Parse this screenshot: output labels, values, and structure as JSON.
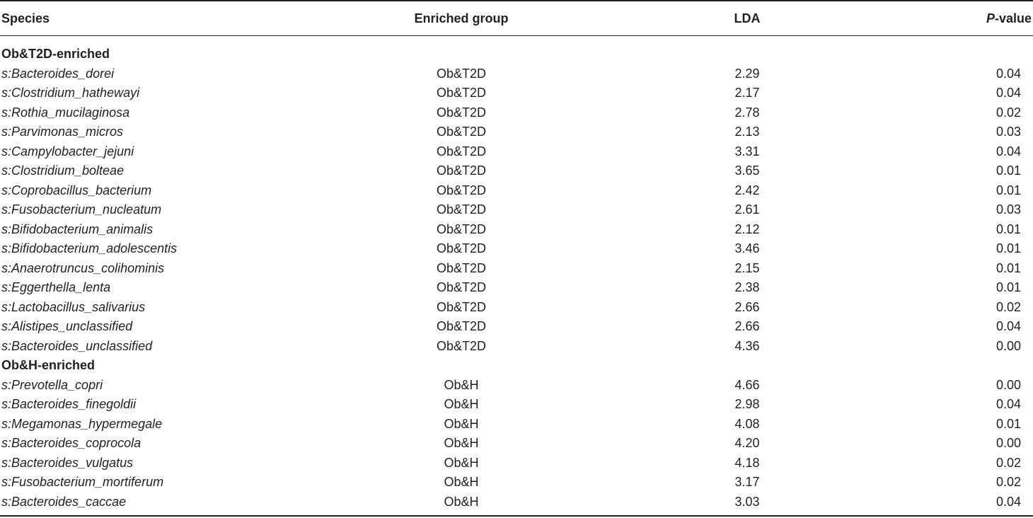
{
  "header": {
    "species": "Species",
    "enriched_group": "Enriched group",
    "lda": "LDA",
    "p_value_italic": "P",
    "p_value_rest": "-value"
  },
  "sections": [
    {
      "title": "Ob&T2D-enriched",
      "rows": [
        {
          "species": "s:Bacteroides_dorei",
          "group": "Ob&T2D",
          "lda": "2.29",
          "p": "0.04"
        },
        {
          "species": "s:Clostridium_hathewayi",
          "group": "Ob&T2D",
          "lda": "2.17",
          "p": "0.04"
        },
        {
          "species": "s:Rothia_mucilaginosa",
          "group": "Ob&T2D",
          "lda": "2.78",
          "p": "0.02"
        },
        {
          "species": "s:Parvimonas_micros",
          "group": "Ob&T2D",
          "lda": "2.13",
          "p": "0.03"
        },
        {
          "species": "s:Campylobacter_jejuni",
          "group": "Ob&T2D",
          "lda": "3.31",
          "p": "0.04"
        },
        {
          "species": "s:Clostridium_bolteae",
          "group": "Ob&T2D",
          "lda": "3.65",
          "p": "0.01"
        },
        {
          "species": "s:Coprobacillus_bacterium",
          "group": "Ob&T2D",
          "lda": "2.42",
          "p": "0.01"
        },
        {
          "species": "s:Fusobacterium_nucleatum",
          "group": "Ob&T2D",
          "lda": "2.61",
          "p": "0.03"
        },
        {
          "species": "s:Bifidobacterium_animalis",
          "group": "Ob&T2D",
          "lda": "2.12",
          "p": "0.01"
        },
        {
          "species": "s:Bifidobacterium_adolescentis",
          "group": "Ob&T2D",
          "lda": "3.46",
          "p": "0.01"
        },
        {
          "species": "s:Anaerotruncus_colihominis",
          "group": "Ob&T2D",
          "lda": "2.15",
          "p": "0.01"
        },
        {
          "species": "s:Eggerthella_lenta",
          "group": "Ob&T2D",
          "lda": "2.38",
          "p": "0.01"
        },
        {
          "species": "s:Lactobacillus_salivarius",
          "group": "Ob&T2D",
          "lda": "2.66",
          "p": "0.02"
        },
        {
          "species": "s:Alistipes_unclassified",
          "group": "Ob&T2D",
          "lda": "2.66",
          "p": "0.04"
        },
        {
          "species": "s:Bacteroides_unclassified",
          "group": "Ob&T2D",
          "lda": "4.36",
          "p": "0.00"
        }
      ]
    },
    {
      "title": "Ob&H-enriched",
      "rows": [
        {
          "species": "s:Prevotella_copri",
          "group": "Ob&H",
          "lda": "4.66",
          "p": "0.00"
        },
        {
          "species": "s:Bacteroides_finegoldii",
          "group": "Ob&H",
          "lda": "2.98",
          "p": "0.04"
        },
        {
          "species": "s:Megamonas_hypermegale",
          "group": "Ob&H",
          "lda": "4.08",
          "p": "0.01"
        },
        {
          "species": "s:Bacteroides_coprocola",
          "group": "Ob&H",
          "lda": "4.20",
          "p": "0.00"
        },
        {
          "species": "s:Bacteroides_vulgatus",
          "group": "Ob&H",
          "lda": "4.18",
          "p": "0.02"
        },
        {
          "species": "s:Fusobacterium_mortiferum",
          "group": "Ob&H",
          "lda": "3.17",
          "p": "0.02"
        },
        {
          "species": "s:Bacteroides_caccae",
          "group": "Ob&H",
          "lda": "3.03",
          "p": "0.04"
        }
      ]
    }
  ]
}
